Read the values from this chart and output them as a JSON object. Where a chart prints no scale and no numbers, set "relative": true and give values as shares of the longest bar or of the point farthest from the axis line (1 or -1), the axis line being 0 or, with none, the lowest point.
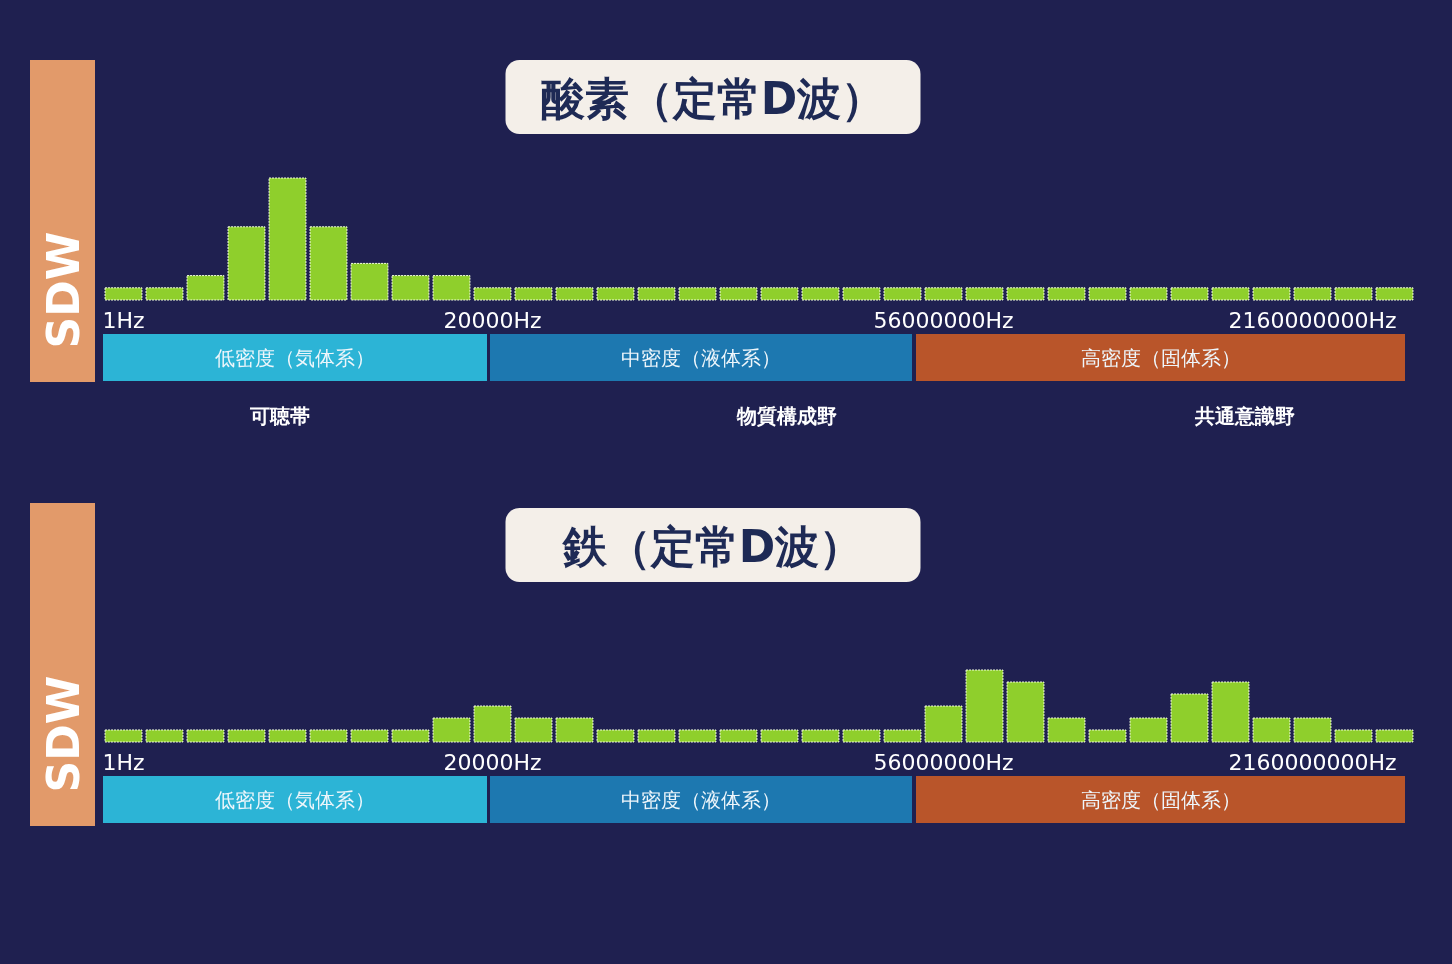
{
  "chart_data": [
    {
      "type": "bar",
      "title": "酸素（定常D波）",
      "ylabel": "SDW",
      "categories": [
        "1Hz",
        null,
        null,
        null,
        null,
        null,
        null,
        null,
        null,
        "20000Hz",
        null,
        null,
        null,
        null,
        null,
        null,
        null,
        null,
        null,
        null,
        "56000000Hz",
        null,
        null,
        null,
        null,
        null,
        null,
        null,
        null,
        "2160000000Hz",
        null,
        null
      ],
      "values": [
        0.1,
        0.1,
        0.2,
        0.6,
        1,
        0.6,
        0.3,
        0.2,
        0.2,
        0.1,
        0.1,
        0.1,
        0.1,
        0.1,
        0.1,
        0.1,
        0.1,
        0.1,
        0.1,
        0.1,
        0.1,
        0.1,
        0.1,
        0.1,
        0.1,
        0.1,
        0.1,
        0.1,
        0.1,
        0.1,
        0.1,
        0.1
      ],
      "color": "#8fcf2c",
      "relative": true,
      "annotations": [
        "低密度（気体系）",
        "中密度（液体系）",
        "高密度（固体系）",
        "可聴帯",
        "物質構成野",
        "共通意識野"
      ]
    },
    {
      "type": "bar",
      "title": "鉄（定常D波）",
      "ylabel": "SDW",
      "categories": [
        "1Hz",
        null,
        null,
        null,
        null,
        null,
        null,
        null,
        null,
        "20000Hz",
        null,
        null,
        null,
        null,
        null,
        null,
        null,
        null,
        null,
        null,
        "56000000Hz",
        null,
        null,
        null,
        null,
        null,
        null,
        null,
        null,
        "2160000000Hz",
        null,
        null
      ],
      "values": [
        0.167,
        0.167,
        0.167,
        0.167,
        0.167,
        0.167,
        0.167,
        0.167,
        0.333,
        0.5,
        0.333,
        0.333,
        0.167,
        0.167,
        0.167,
        0.167,
        0.167,
        0.167,
        0.167,
        0.167,
        0.5,
        1,
        0.833,
        0.333,
        0.167,
        0.333,
        0.667,
        0.833,
        0.333,
        0.333,
        0.167,
        0.167
      ],
      "color": "#8fcf2c",
      "relative": true,
      "annotations": [
        "低密度（気体系）",
        "中密度（液体系）",
        "高密度（固体系）"
      ]
    }
  ]
}
